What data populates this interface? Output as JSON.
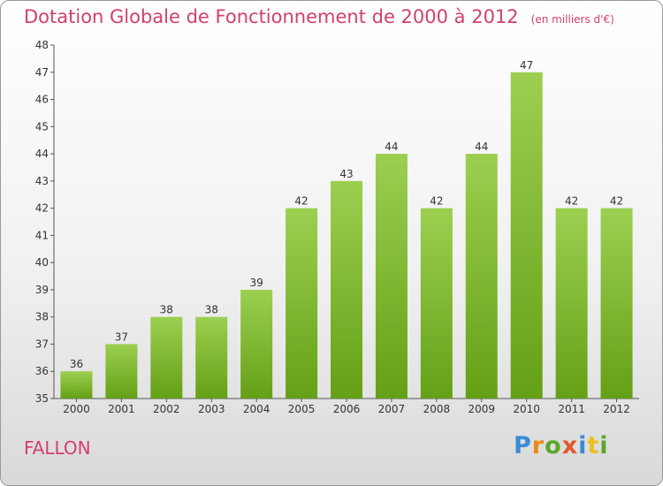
{
  "title": "Dotation Globale de Fonctionnement de 2000 à 2012",
  "unit_note": "(en milliers d'€)",
  "commune": "FALLON",
  "brand": {
    "text": "Proxiti",
    "colors": [
      "#3a8ad6",
      "#e88a1a",
      "#5aa82a",
      "#e05a2a",
      "#3a8ad6",
      "#e8c21a",
      "#5aa82a"
    ]
  },
  "colors": {
    "bar_top": "#9ccf50",
    "bar_bottom": "#64a016",
    "title": "#d2406b"
  },
  "chart_data": {
    "type": "bar",
    "categories": [
      "2000",
      "2001",
      "2002",
      "2003",
      "2004",
      "2005",
      "2006",
      "2007",
      "2008",
      "2009",
      "2010",
      "2011",
      "2012"
    ],
    "values": [
      36,
      37,
      38,
      38,
      39,
      42,
      43,
      44,
      42,
      44,
      47,
      42,
      42
    ],
    "title": "Dotation Globale de Fonctionnement de 2000 à 2012",
    "ylim": [
      35,
      48
    ],
    "yticks": [
      35,
      36,
      37,
      38,
      39,
      40,
      41,
      42,
      43,
      44,
      45,
      46,
      47,
      48
    ],
    "grid": false,
    "data_labels": true
  }
}
